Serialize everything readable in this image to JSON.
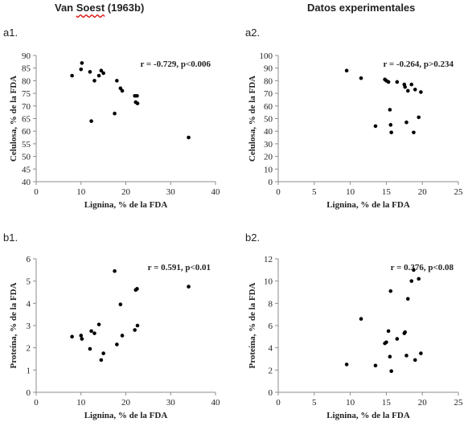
{
  "headers": {
    "left": "Van Soest (1963b)",
    "left_flagged": "Soest",
    "right": "Datos experimentales"
  },
  "chart_data": [
    {
      "id": "a1",
      "panel_label": "a1.",
      "type": "scatter",
      "annotation": "r = -0.729, p<0.006",
      "xlabel": "Lignina, % de la FDA",
      "ylabel": "Celulosa, % de la FDA",
      "xlim": [
        0,
        40
      ],
      "ylim": [
        40,
        90
      ],
      "xticks": [
        0,
        10,
        20,
        30,
        40
      ],
      "yticks": [
        40,
        45,
        50,
        55,
        60,
        65,
        70,
        75,
        80,
        85,
        90
      ],
      "points": [
        [
          8,
          82
        ],
        [
          10,
          84.5
        ],
        [
          10.2,
          87
        ],
        [
          12,
          83.5
        ],
        [
          12.3,
          64
        ],
        [
          13,
          80
        ],
        [
          14,
          82
        ],
        [
          14.5,
          84
        ],
        [
          15,
          83
        ],
        [
          17.5,
          67
        ],
        [
          18,
          80
        ],
        [
          18.8,
          77
        ],
        [
          19.2,
          76
        ],
        [
          22,
          74
        ],
        [
          22.2,
          71.5
        ],
        [
          22.5,
          74
        ],
        [
          22.6,
          71
        ],
        [
          34,
          57.5
        ]
      ]
    },
    {
      "id": "a2",
      "panel_label": "a2.",
      "type": "scatter",
      "annotation": "r = -0.264, p>0.234",
      "xlabel": "Lignina, % de la FDA",
      "ylabel": "Celulosa, % de la FDA",
      "xlim": [
        0,
        25
      ],
      "ylim": [
        0,
        100
      ],
      "xticks": [
        0,
        5,
        10,
        15,
        20,
        25
      ],
      "yticks": [
        0,
        10,
        20,
        30,
        40,
        50,
        60,
        70,
        80,
        90,
        100
      ],
      "points": [
        [
          9.5,
          88
        ],
        [
          11.5,
          82
        ],
        [
          13.5,
          44
        ],
        [
          14.8,
          81
        ],
        [
          15,
          80
        ],
        [
          15.3,
          79
        ],
        [
          15.5,
          57
        ],
        [
          15.6,
          45
        ],
        [
          15.7,
          39
        ],
        [
          16.5,
          79
        ],
        [
          17.5,
          77
        ],
        [
          17.6,
          75
        ],
        [
          17.8,
          47
        ],
        [
          18,
          72
        ],
        [
          18.5,
          77
        ],
        [
          18.8,
          39
        ],
        [
          19,
          73
        ],
        [
          19.5,
          51
        ],
        [
          19.8,
          71
        ]
      ]
    },
    {
      "id": "b1",
      "panel_label": "b1.",
      "type": "scatter",
      "annotation": "r = 0.591, p<0.01",
      "xlabel": "Lignina, % de la FDA",
      "ylabel": "Proteína, % de la FDA",
      "xlim": [
        0,
        40
      ],
      "ylim": [
        0,
        6
      ],
      "xticks": [
        0,
        10,
        20,
        30,
        40
      ],
      "yticks": [
        0,
        1,
        2,
        3,
        4,
        5,
        6
      ],
      "points": [
        [
          8,
          2.5
        ],
        [
          10,
          2.55
        ],
        [
          10.2,
          2.4
        ],
        [
          12,
          1.95
        ],
        [
          12.3,
          2.75
        ],
        [
          13,
          2.65
        ],
        [
          14,
          3.05
        ],
        [
          14.5,
          1.45
        ],
        [
          15,
          1.75
        ],
        [
          17.5,
          5.45
        ],
        [
          18,
          2.15
        ],
        [
          18.8,
          3.95
        ],
        [
          19.2,
          2.55
        ],
        [
          22,
          2.8
        ],
        [
          22.2,
          4.6
        ],
        [
          22.5,
          4.65
        ],
        [
          22.6,
          3
        ],
        [
          34,
          4.75
        ]
      ]
    },
    {
      "id": "b2",
      "panel_label": "b2.",
      "type": "scatter",
      "annotation": "r = 0.376, p<0.08",
      "xlabel": "Lignina, % de la FDA",
      "ylabel": "Proteína, % de la FDA",
      "xlim": [
        0,
        25
      ],
      "ylim": [
        0,
        12
      ],
      "xticks": [
        0,
        5,
        10,
        15,
        20,
        25
      ],
      "yticks": [
        0,
        2,
        4,
        6,
        8,
        10,
        12
      ],
      "points": [
        [
          9.5,
          2.5
        ],
        [
          11.5,
          6.6
        ],
        [
          13.5,
          2.4
        ],
        [
          14.8,
          4.4
        ],
        [
          15,
          4.5
        ],
        [
          15.3,
          5.5
        ],
        [
          15.5,
          3.2
        ],
        [
          15.6,
          9.1
        ],
        [
          15.7,
          1.9
        ],
        [
          16.5,
          4.8
        ],
        [
          17.5,
          5.3
        ],
        [
          17.6,
          5.4
        ],
        [
          17.8,
          3.3
        ],
        [
          18,
          8.4
        ],
        [
          18.5,
          10
        ],
        [
          18.8,
          11
        ],
        [
          19,
          2.9
        ],
        [
          19.5,
          10.2
        ],
        [
          19.8,
          3.5
        ]
      ]
    }
  ]
}
